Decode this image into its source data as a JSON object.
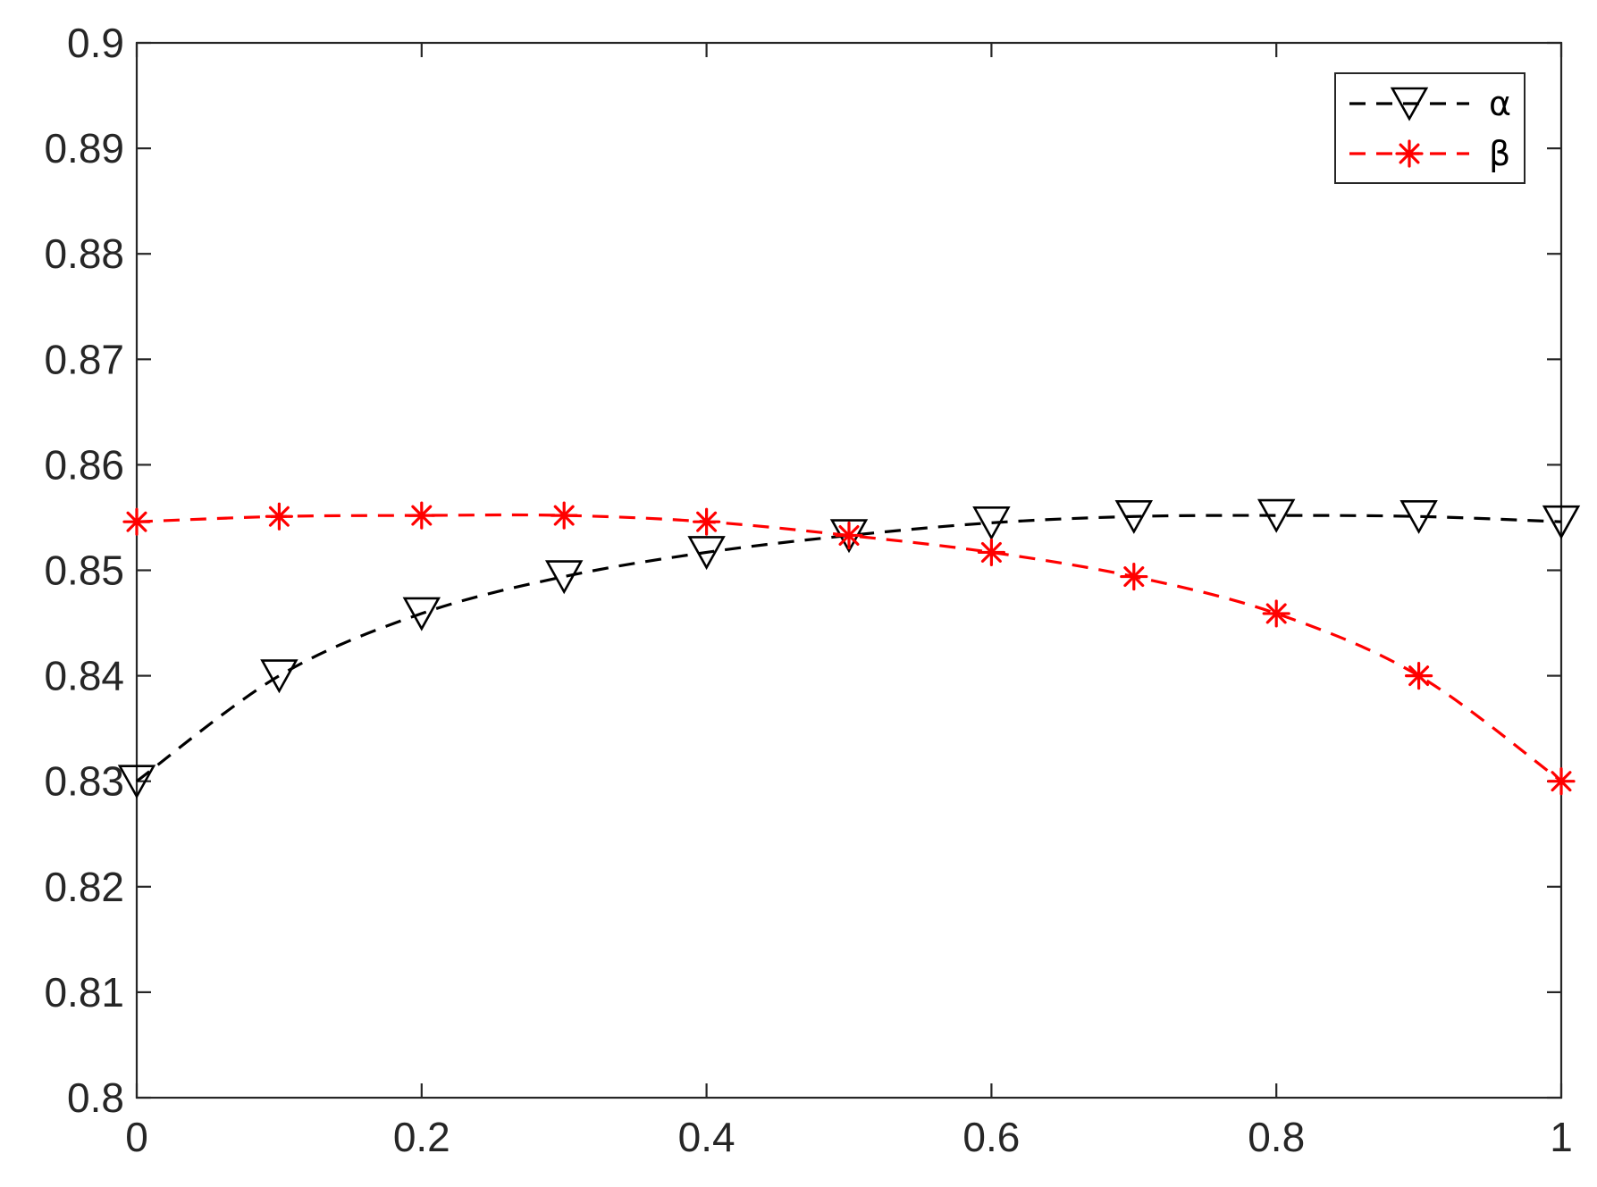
{
  "chart_data": {
    "type": "line",
    "title": "",
    "xlabel": "",
    "ylabel": "",
    "x": [
      0,
      0.1,
      0.2,
      0.3,
      0.4,
      0.5,
      0.6,
      0.7,
      0.8,
      0.9,
      1
    ],
    "xlim": [
      0,
      1
    ],
    "ylim": [
      0.8,
      0.9
    ],
    "x_ticks": [
      0,
      0.2,
      0.4,
      0.6,
      0.8,
      1
    ],
    "x_tick_labels": [
      "0",
      "0.2",
      "0.4",
      "0.6",
      "0.8",
      "1"
    ],
    "y_ticks": [
      0.8,
      0.81,
      0.82,
      0.83,
      0.84,
      0.85,
      0.86,
      0.87,
      0.88,
      0.89,
      0.9
    ],
    "y_tick_labels": [
      "0.8",
      "0.81",
      "0.82",
      "0.83",
      "0.84",
      "0.85",
      "0.86",
      "0.87",
      "0.88",
      "0.89",
      "0.9"
    ],
    "grid": false,
    "legend_position": "top-right",
    "series": [
      {
        "name": "α",
        "color": "#000000",
        "line_style": "dashed",
        "marker": "triangle-down-open",
        "values": [
          0.83,
          0.84,
          0.8459,
          0.8494,
          0.8517,
          0.8533,
          0.8545,
          0.8551,
          0.8552,
          0.8551,
          0.8546
        ]
      },
      {
        "name": "β",
        "color": "#ff0000",
        "line_style": "dashed",
        "marker": "asterisk",
        "values": [
          0.8546,
          0.8551,
          0.8552,
          0.8552,
          0.8546,
          0.8533,
          0.8517,
          0.8494,
          0.8459,
          0.84,
          0.83
        ]
      }
    ]
  }
}
